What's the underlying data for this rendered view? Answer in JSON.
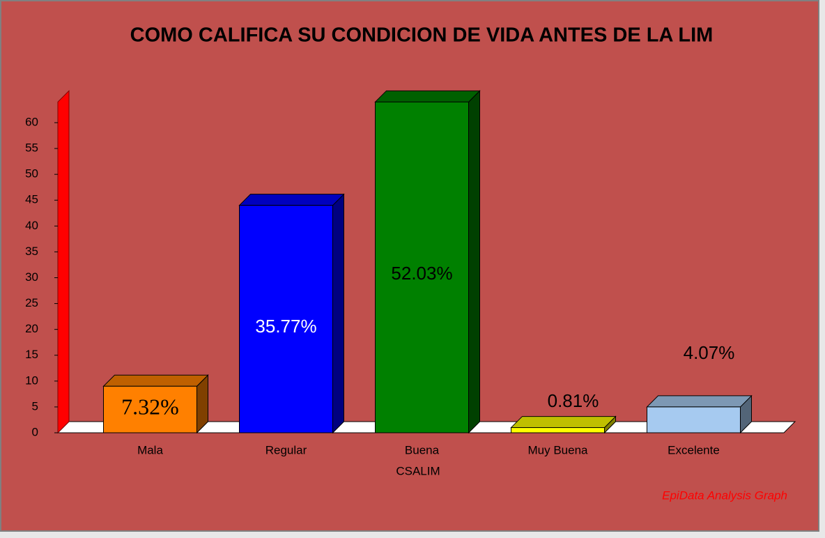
{
  "chart_data": {
    "type": "bar3d",
    "title": "COMO CALIFICA SU CONDICION DE VIDA ANTES DE LA LIM",
    "categories": [
      "Mala",
      "Regular",
      "Buena",
      "Muy Buena",
      "Excelente"
    ],
    "values": [
      9,
      44,
      64,
      1,
      5
    ],
    "data_labels": [
      "7.32%",
      "35.77%",
      "52.03%",
      "0.81%",
      "4.07%"
    ],
    "colors": [
      "#ff8000",
      "#0000ff",
      "#008000",
      "#ffff00",
      "#a6caf0"
    ],
    "xlabel": "CSALIM",
    "ylim": [
      0,
      64
    ],
    "yticks": [
      0,
      5,
      10,
      15,
      20,
      25,
      30,
      35,
      40,
      45,
      50,
      55,
      60
    ],
    "footer": "EpiData Analysis Graph"
  }
}
